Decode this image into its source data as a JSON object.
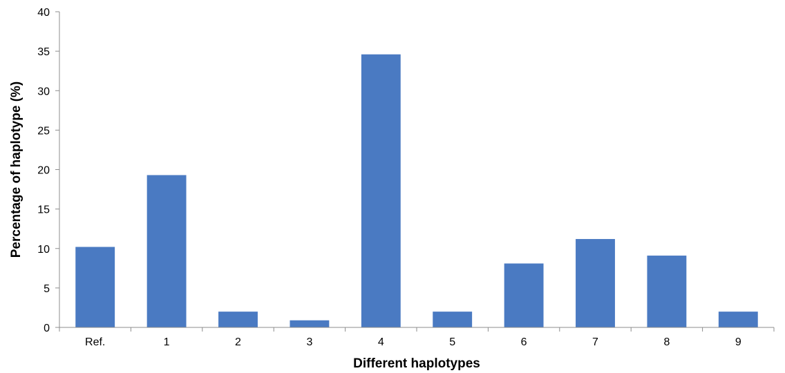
{
  "chart_data": {
    "type": "bar",
    "title": "",
    "xlabel": "Different haplotypes",
    "ylabel": "Percentage of haplotype (%)",
    "categories": [
      "Ref.",
      "1",
      "2",
      "3",
      "4",
      "5",
      "6",
      "7",
      "8",
      "9"
    ],
    "values": [
      10.2,
      19.3,
      2.0,
      0.9,
      34.6,
      2.0,
      8.1,
      11.2,
      9.1,
      2.0
    ],
    "ylim": [
      0,
      40
    ],
    "yticks": [
      0,
      5,
      10,
      15,
      20,
      25,
      30,
      35,
      40
    ],
    "ytick_labels": [
      "0",
      "5",
      "10",
      "15",
      "20",
      "25",
      "30",
      "35",
      "40"
    ],
    "grid": false,
    "legend": "none",
    "bar_color": "#4a7ac2",
    "axis_color": "#8c8c8c"
  }
}
